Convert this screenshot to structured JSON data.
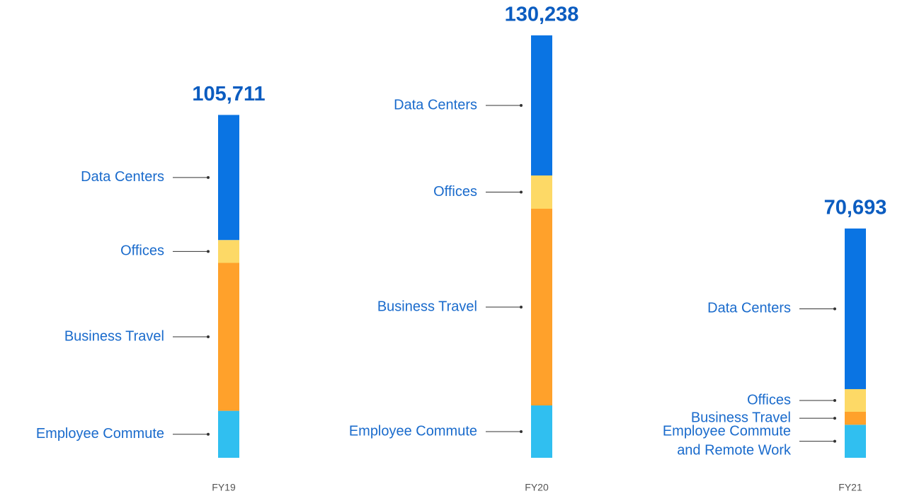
{
  "chart_data": {
    "type": "stacked-bar",
    "categories": [
      "FY19",
      "FY20",
      "FY21"
    ],
    "totals": [
      105711,
      130238,
      70693
    ],
    "total_labels": [
      "105,711",
      "130,238",
      "70,693"
    ],
    "series": [
      {
        "labels": [
          "Employee Commute",
          "Employee Commute",
          [
            "Employee Commute",
            "and Remote Work"
          ]
        ],
        "color": "#30bff0",
        "values": [
          14486,
          16143,
          10185
        ]
      },
      {
        "labels": [
          "Business Travel",
          "Business Travel",
          "Business Travel"
        ],
        "color": "#ffa12b",
        "values": [
          45612,
          60647,
          3994
        ]
      },
      {
        "labels": [
          "Offices",
          "Offices",
          "Offices"
        ],
        "color": "#fdd966",
        "values": [
          7047,
          10253,
          6989
        ]
      },
      {
        "labels": [
          "Data Centers",
          "Data Centers",
          "Data Centers"
        ],
        "color": "#0a74e3",
        "values": [
          38566,
          43195,
          49525
        ]
      }
    ]
  }
}
